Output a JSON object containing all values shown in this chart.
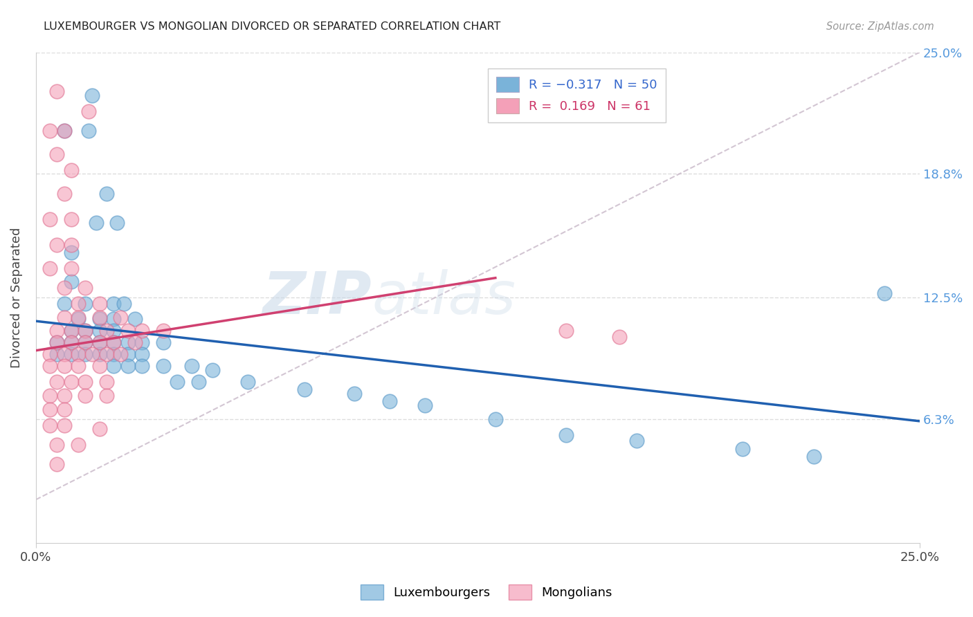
{
  "title": "LUXEMBOURGER VS MONGOLIAN DIVORCED OR SEPARATED CORRELATION CHART",
  "source": "Source: ZipAtlas.com",
  "ylabel": "Divorced or Separated",
  "xlim": [
    0.0,
    0.25
  ],
  "ylim": [
    0.0,
    0.25
  ],
  "blue_scatter": [
    [
      0.016,
      0.228
    ],
    [
      0.008,
      0.21
    ],
    [
      0.015,
      0.21
    ],
    [
      0.02,
      0.178
    ],
    [
      0.017,
      0.163
    ],
    [
      0.023,
      0.163
    ],
    [
      0.01,
      0.148
    ],
    [
      0.01,
      0.133
    ],
    [
      0.008,
      0.122
    ],
    [
      0.014,
      0.122
    ],
    [
      0.022,
      0.122
    ],
    [
      0.025,
      0.122
    ],
    [
      0.012,
      0.114
    ],
    [
      0.018,
      0.114
    ],
    [
      0.022,
      0.114
    ],
    [
      0.028,
      0.114
    ],
    [
      0.01,
      0.108
    ],
    [
      0.014,
      0.108
    ],
    [
      0.018,
      0.108
    ],
    [
      0.022,
      0.108
    ],
    [
      0.006,
      0.102
    ],
    [
      0.01,
      0.102
    ],
    [
      0.014,
      0.102
    ],
    [
      0.018,
      0.102
    ],
    [
      0.022,
      0.102
    ],
    [
      0.026,
      0.102
    ],
    [
      0.03,
      0.102
    ],
    [
      0.036,
      0.102
    ],
    [
      0.006,
      0.096
    ],
    [
      0.01,
      0.096
    ],
    [
      0.014,
      0.096
    ],
    [
      0.018,
      0.096
    ],
    [
      0.022,
      0.096
    ],
    [
      0.026,
      0.096
    ],
    [
      0.03,
      0.096
    ],
    [
      0.022,
      0.09
    ],
    [
      0.026,
      0.09
    ],
    [
      0.03,
      0.09
    ],
    [
      0.036,
      0.09
    ],
    [
      0.044,
      0.09
    ],
    [
      0.05,
      0.088
    ],
    [
      0.04,
      0.082
    ],
    [
      0.046,
      0.082
    ],
    [
      0.06,
      0.082
    ],
    [
      0.076,
      0.078
    ],
    [
      0.09,
      0.076
    ],
    [
      0.1,
      0.072
    ],
    [
      0.11,
      0.07
    ],
    [
      0.13,
      0.063
    ],
    [
      0.15,
      0.055
    ],
    [
      0.17,
      0.052
    ],
    [
      0.2,
      0.048
    ],
    [
      0.22,
      0.044
    ],
    [
      0.24,
      0.127
    ]
  ],
  "pink_scatter": [
    [
      0.006,
      0.23
    ],
    [
      0.015,
      0.22
    ],
    [
      0.004,
      0.21
    ],
    [
      0.008,
      0.21
    ],
    [
      0.006,
      0.198
    ],
    [
      0.01,
      0.19
    ],
    [
      0.008,
      0.178
    ],
    [
      0.004,
      0.165
    ],
    [
      0.01,
      0.165
    ],
    [
      0.006,
      0.152
    ],
    [
      0.01,
      0.152
    ],
    [
      0.004,
      0.14
    ],
    [
      0.01,
      0.14
    ],
    [
      0.008,
      0.13
    ],
    [
      0.014,
      0.13
    ],
    [
      0.012,
      0.122
    ],
    [
      0.018,
      0.122
    ],
    [
      0.008,
      0.115
    ],
    [
      0.012,
      0.115
    ],
    [
      0.018,
      0.115
    ],
    [
      0.024,
      0.115
    ],
    [
      0.006,
      0.108
    ],
    [
      0.01,
      0.108
    ],
    [
      0.014,
      0.108
    ],
    [
      0.02,
      0.108
    ],
    [
      0.026,
      0.108
    ],
    [
      0.03,
      0.108
    ],
    [
      0.036,
      0.108
    ],
    [
      0.006,
      0.102
    ],
    [
      0.01,
      0.102
    ],
    [
      0.014,
      0.102
    ],
    [
      0.018,
      0.102
    ],
    [
      0.022,
      0.102
    ],
    [
      0.028,
      0.102
    ],
    [
      0.004,
      0.096
    ],
    [
      0.008,
      0.096
    ],
    [
      0.012,
      0.096
    ],
    [
      0.016,
      0.096
    ],
    [
      0.02,
      0.096
    ],
    [
      0.024,
      0.096
    ],
    [
      0.004,
      0.09
    ],
    [
      0.008,
      0.09
    ],
    [
      0.012,
      0.09
    ],
    [
      0.018,
      0.09
    ],
    [
      0.006,
      0.082
    ],
    [
      0.01,
      0.082
    ],
    [
      0.014,
      0.082
    ],
    [
      0.02,
      0.082
    ],
    [
      0.004,
      0.075
    ],
    [
      0.008,
      0.075
    ],
    [
      0.014,
      0.075
    ],
    [
      0.02,
      0.075
    ],
    [
      0.004,
      0.068
    ],
    [
      0.008,
      0.068
    ],
    [
      0.004,
      0.06
    ],
    [
      0.008,
      0.06
    ],
    [
      0.018,
      0.058
    ],
    [
      0.006,
      0.05
    ],
    [
      0.012,
      0.05
    ],
    [
      0.006,
      0.04
    ],
    [
      0.15,
      0.108
    ],
    [
      0.165,
      0.105
    ]
  ],
  "blue_line": [
    [
      0.0,
      0.113
    ],
    [
      0.25,
      0.062
    ]
  ],
  "pink_line": [
    [
      0.0,
      0.098
    ],
    [
      0.13,
      0.135
    ]
  ],
  "dashed_line": [
    [
      0.0,
      0.022
    ],
    [
      0.25,
      0.25
    ]
  ],
  "blue_color": "#7ab3d9",
  "blue_edge": "#5898c8",
  "pink_color": "#f4a0b8",
  "pink_edge": "#e07090",
  "blue_line_color": "#2060b0",
  "pink_line_color": "#d04070",
  "dashed_color": "#c8b8c8",
  "background": "#ffffff",
  "grid_color": "#dddddd",
  "right_tick_color": "#5599dd",
  "title_color": "#222222",
  "source_color": "#999999",
  "watermark_zip_color": "#c8d8e8",
  "watermark_atlas_color": "#c8d8e8"
}
